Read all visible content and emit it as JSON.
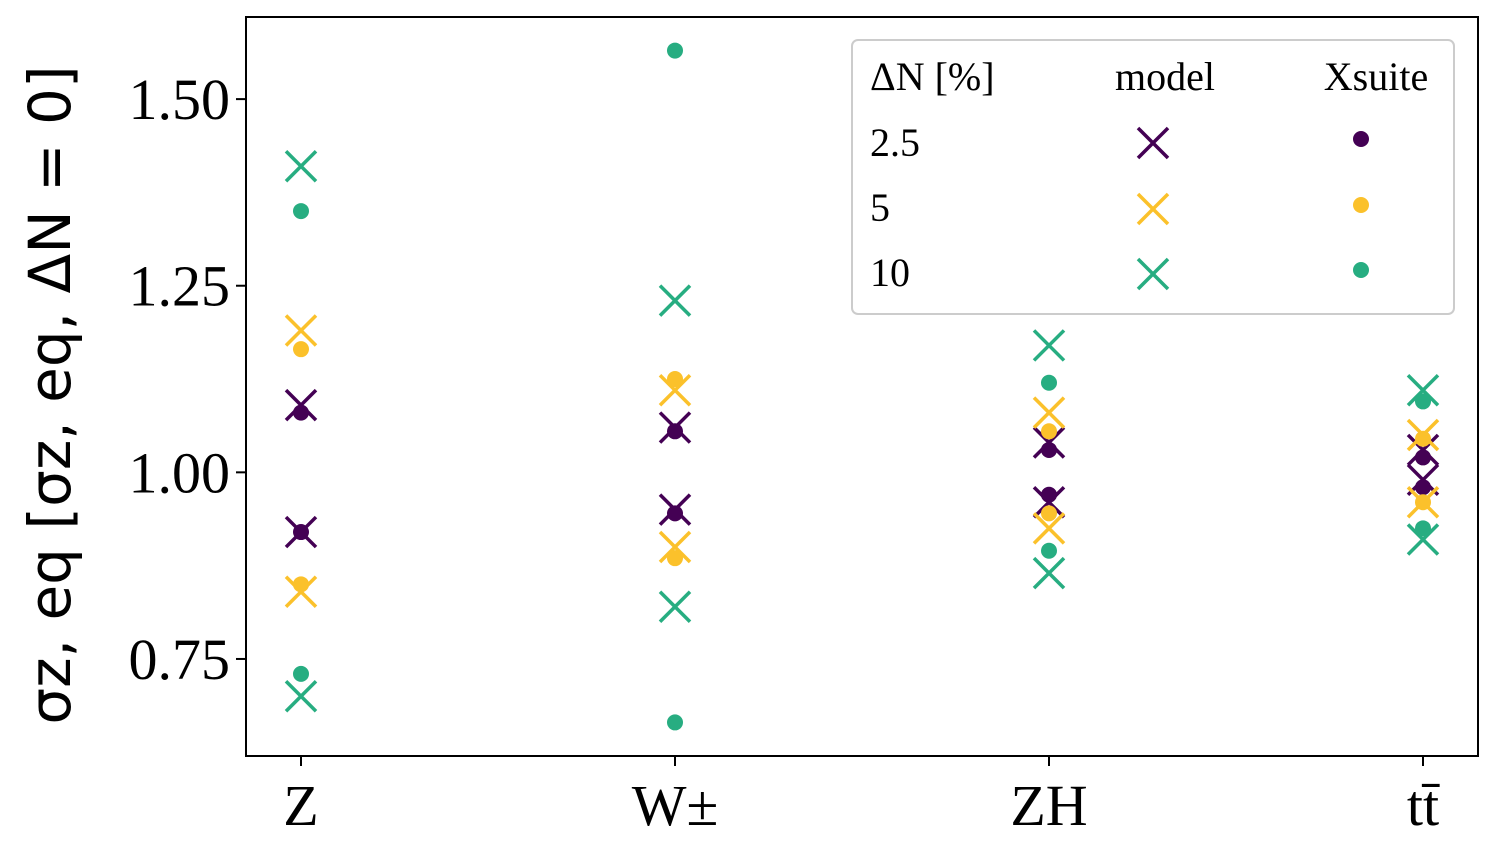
{
  "chart_data": {
    "type": "scatter",
    "categories": [
      "Z",
      "W±",
      "ZH",
      "tt̄"
    ],
    "ylabel": "σz, eq [σz, eq, ΔN = 0]",
    "ylim": [
      0.62,
      1.61
    ],
    "yticks": [
      0.75,
      1.0,
      1.25,
      1.5
    ],
    "ytick_labels": [
      "0.75",
      "1.00",
      "1.25",
      "1.50"
    ],
    "grid": false,
    "legend": {
      "placement": "top-right",
      "headers": [
        "ΔN [%]",
        "model",
        "Xsuite"
      ],
      "rows": [
        "2.5",
        "5",
        "10"
      ]
    },
    "colors": {
      "2.5": "#440154",
      "5": "#fbc12b",
      "10": "#27ad81"
    },
    "series": [
      {
        "dN": "2.5",
        "model": [
          [
            1.09,
            0.92
          ],
          [
            1.06,
            0.95
          ],
          [
            1.04,
            0.96
          ],
          [
            1.03,
            0.99
          ]
        ],
        "xsuite": [
          [
            1.08,
            0.92
          ],
          [
            1.055,
            0.945
          ],
          [
            1.03,
            0.97
          ],
          [
            1.02,
            0.98
          ]
        ]
      },
      {
        "dN": "5",
        "model": [
          [
            1.19,
            0.84
          ],
          [
            1.11,
            0.9
          ],
          [
            1.08,
            0.925
          ],
          [
            1.05,
            0.96
          ]
        ],
        "xsuite": [
          [
            1.165,
            0.85
          ],
          [
            1.125,
            0.885
          ],
          [
            1.055,
            0.945
          ],
          [
            1.045,
            0.96
          ]
        ]
      },
      {
        "dN": "10",
        "model": [
          [
            1.41,
            0.7
          ],
          [
            1.23,
            0.82
          ],
          [
            1.17,
            0.865
          ],
          [
            1.11,
            0.91
          ]
        ],
        "xsuite": [
          [
            1.35,
            0.73
          ],
          [
            1.565,
            0.665
          ],
          [
            1.12,
            0.895
          ],
          [
            1.095,
            0.925
          ]
        ]
      }
    ]
  }
}
